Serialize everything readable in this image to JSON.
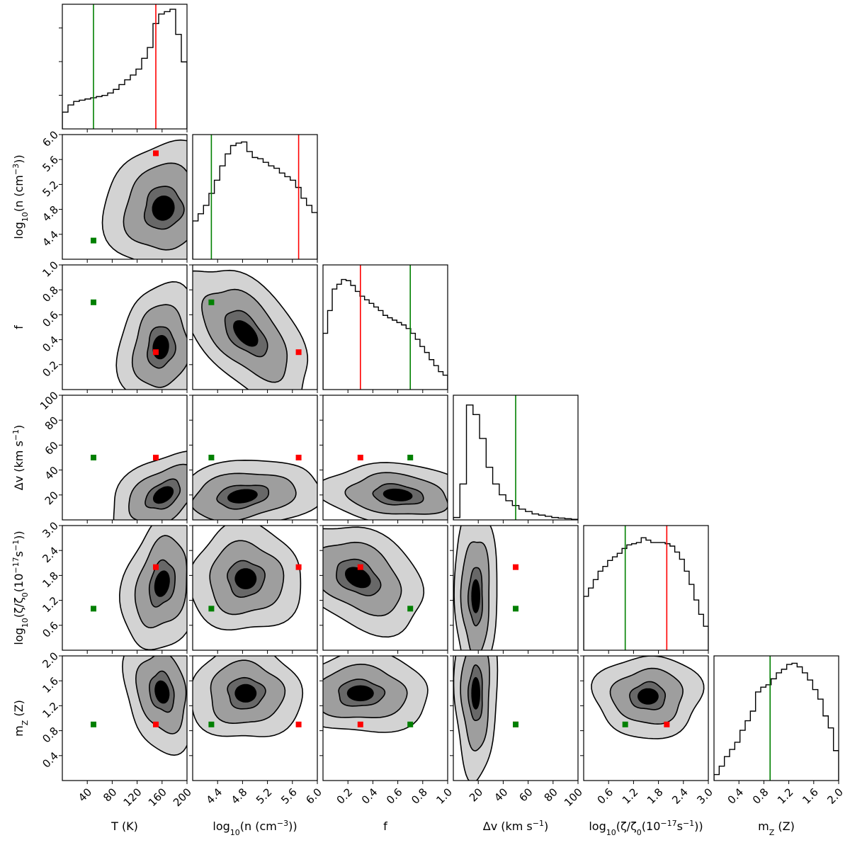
{
  "chart_data": {
    "type": "corner",
    "title": "",
    "parameters": [
      {
        "key": "T",
        "label_parts": [
          [
            "T (K)",
            ""
          ]
        ],
        "range": [
          0,
          200
        ],
        "ticks": [
          40,
          80,
          120,
          160,
          200
        ],
        "tick_labels": [
          "40",
          "80",
          "120",
          "160",
          "200"
        ]
      },
      {
        "key": "logn",
        "label_parts": [
          [
            "log",
            ""
          ],
          [
            "10",
            "sub"
          ],
          [
            "(n (cm",
            ""
          ],
          [
            "−3",
            "sup"
          ],
          [
            "))",
            ""
          ]
        ],
        "range": [
          4.0,
          6.0
        ],
        "ticks": [
          4.4,
          4.8,
          5.2,
          5.6,
          6.0
        ],
        "tick_labels": [
          "4.4",
          "4.8",
          "5.2",
          "5.6",
          "6.0"
        ]
      },
      {
        "key": "f",
        "label_parts": [
          [
            "f",
            ""
          ]
        ],
        "range": [
          0.0,
          1.0
        ],
        "ticks": [
          0.2,
          0.4,
          0.6,
          0.8,
          1.0
        ],
        "tick_labels": [
          "0.2",
          "0.4",
          "0.6",
          "0.8",
          "1.0"
        ]
      },
      {
        "key": "dv",
        "label_parts": [
          [
            "Δv (km s",
            ""
          ],
          [
            "−1",
            "sup"
          ],
          [
            ")",
            ""
          ]
        ],
        "range": [
          0,
          100
        ],
        "ticks": [
          20,
          40,
          60,
          80,
          100
        ],
        "tick_labels": [
          "20",
          "40",
          "60",
          "80",
          "100"
        ]
      },
      {
        "key": "logzeta",
        "label_parts": [
          [
            "log",
            ""
          ],
          [
            "10",
            "sub"
          ],
          [
            "(ζ/ζ",
            ""
          ],
          [
            "0",
            "sub"
          ],
          [
            "(10",
            ""
          ],
          [
            "−17",
            "sup"
          ],
          [
            "s",
            ""
          ],
          [
            "−1",
            "sup"
          ],
          [
            "))",
            ""
          ]
        ],
        "range": [
          0.0,
          3.0
        ],
        "ticks": [
          0.6,
          1.2,
          1.8,
          2.4,
          3.0
        ],
        "tick_labels": [
          "0.6",
          "1.2",
          "1.8",
          "2.4",
          "3.0"
        ]
      },
      {
        "key": "mz",
        "label_parts": [
          [
            "m",
            ""
          ],
          [
            "Z",
            "sub"
          ],
          [
            " (Z)",
            ""
          ]
        ],
        "range": [
          0.0,
          2.0
        ],
        "ticks": [
          0.4,
          0.8,
          1.2,
          1.6,
          2.0
        ],
        "tick_labels": [
          "0.4",
          "0.8",
          "1.2",
          "1.6",
          "2.0"
        ]
      }
    ],
    "truth_red": [
      150,
      5.7,
      0.3,
      50,
      2.0,
      0.9
    ],
    "truth_green": [
      50,
      4.3,
      0.7,
      50,
      1.0,
      0.9
    ],
    "red_line_params": [
      "T",
      "logn",
      "f",
      "logzeta"
    ],
    "green_line_params": [
      "T",
      "logn",
      "f",
      "dv",
      "logzeta",
      "mz"
    ],
    "histograms": {
      "T": [
        0.14,
        0.2,
        0.23,
        0.24,
        0.25,
        0.26,
        0.27,
        0.28,
        0.3,
        0.33,
        0.37,
        0.41,
        0.45,
        0.5,
        0.59,
        0.68,
        0.88,
        0.96,
        0.98,
        1.0,
        0.79,
        0.56
      ],
      "logn": [
        0.32,
        0.38,
        0.45,
        0.55,
        0.66,
        0.78,
        0.88,
        0.95,
        0.97,
        0.98,
        0.9,
        0.85,
        0.84,
        0.81,
        0.78,
        0.76,
        0.72,
        0.69,
        0.66,
        0.6,
        0.51,
        0.45,
        0.39
      ],
      "f": [
        0.47,
        0.66,
        0.84,
        0.88,
        0.92,
        0.91,
        0.87,
        0.82,
        0.78,
        0.75,
        0.72,
        0.69,
        0.66,
        0.62,
        0.6,
        0.58,
        0.56,
        0.54,
        0.51,
        0.47,
        0.42,
        0.36,
        0.31,
        0.25,
        0.2,
        0.15,
        0.12
      ],
      "dv": [
        0.02,
        0.3,
        0.96,
        0.88,
        0.68,
        0.44,
        0.3,
        0.21,
        0.16,
        0.12,
        0.09,
        0.07,
        0.05,
        0.04,
        0.03,
        0.02,
        0.015,
        0.01,
        0.005
      ],
      "logzeta": [
        0.45,
        0.52,
        0.59,
        0.66,
        0.7,
        0.75,
        0.78,
        0.81,
        0.85,
        0.88,
        0.89,
        0.9,
        0.94,
        0.92,
        0.9,
        0.9,
        0.9,
        0.89,
        0.87,
        0.82,
        0.76,
        0.66,
        0.55,
        0.42,
        0.3,
        0.2
      ],
      "mz": [
        0.05,
        0.12,
        0.2,
        0.26,
        0.32,
        0.42,
        0.5,
        0.58,
        0.74,
        0.78,
        0.8,
        0.85,
        0.9,
        0.93,
        0.97,
        0.98,
        0.95,
        0.9,
        0.84,
        0.76,
        0.68,
        0.54,
        0.44,
        0.25
      ]
    },
    "posterior_2d": [
      {
        "x": "T",
        "y": "logn",
        "mode": [
          162,
          4.82
        ],
        "sigma": [
          28,
          0.4
        ],
        "rho": 0.2,
        "ext": [
          1.2,
          1.6
        ]
      },
      {
        "x": "T",
        "y": "f",
        "mode": [
          158,
          0.34
        ],
        "sigma": [
          24,
          0.18
        ],
        "rho": 0.1,
        "ext": [
          1.3,
          1.3
        ]
      },
      {
        "x": "T",
        "y": "dv",
        "mode": [
          162,
          20
        ],
        "sigma": [
          26,
          12
        ],
        "rho": 0.2,
        "ext": [
          1.6,
          1.2
        ]
      },
      {
        "x": "T",
        "y": "logzeta",
        "mode": [
          160,
          1.6
        ],
        "sigma": [
          26,
          0.55
        ],
        "rho": 0.15,
        "ext": [
          1.4,
          1.1
        ]
      },
      {
        "x": "T",
        "y": "mz",
        "mode": [
          160,
          1.42
        ],
        "sigma": [
          25,
          0.32
        ],
        "rho": -0.1,
        "ext": [
          1.4,
          1.1
        ]
      },
      {
        "x": "logn",
        "y": "f",
        "mode": [
          4.85,
          0.45
        ],
        "sigma": [
          0.38,
          0.2
        ],
        "rho": -0.5,
        "ext": [
          1.3,
          1.2
        ]
      },
      {
        "x": "logn",
        "y": "dv",
        "mode": [
          4.8,
          19
        ],
        "sigma": [
          0.42,
          11
        ],
        "rho": 0.2,
        "ext": [
          1.4,
          1.2
        ]
      },
      {
        "x": "logn",
        "y": "logzeta",
        "mode": [
          4.85,
          1.72
        ],
        "sigma": [
          0.38,
          0.55
        ],
        "rho": 0.0,
        "ext": [
          1.1,
          1.1
        ]
      },
      {
        "x": "logn",
        "y": "mz",
        "mode": [
          4.85,
          1.4
        ],
        "sigma": [
          0.38,
          0.32
        ],
        "rho": 0.0,
        "ext": [
          1.1,
          1.1
        ]
      },
      {
        "x": "f",
        "y": "dv",
        "mode": [
          0.6,
          20
        ],
        "sigma": [
          0.22,
          9
        ],
        "rho": -0.2,
        "ext": [
          1.3,
          1.3
        ]
      },
      {
        "x": "f",
        "y": "logzeta",
        "mode": [
          0.28,
          1.75
        ],
        "sigma": [
          0.2,
          0.55
        ],
        "rho": -0.15,
        "ext": [
          1.3,
          1.0
        ]
      },
      {
        "x": "f",
        "y": "mz",
        "mode": [
          0.3,
          1.4
        ],
        "sigma": [
          0.2,
          0.3
        ],
        "rho": 0.0,
        "ext": [
          1.3,
          1.0
        ]
      },
      {
        "x": "dv",
        "y": "logzeta",
        "mode": [
          18,
          1.3
        ],
        "sigma": [
          8,
          0.55
        ],
        "rho": 0.0,
        "ext": [
          1.8,
          1.0
        ]
      },
      {
        "x": "dv",
        "y": "mz",
        "mode": [
          18,
          1.4
        ],
        "sigma": [
          8,
          0.35
        ],
        "rho": 0.0,
        "ext": [
          1.8,
          1.0
        ]
      },
      {
        "x": "logzeta",
        "y": "mz",
        "mode": [
          1.55,
          1.35
        ],
        "sigma": [
          0.55,
          0.28
        ],
        "rho": 0.0,
        "ext": [
          1.1,
          1.1
        ]
      }
    ],
    "contour_levels": [
      0.25,
      1.0,
      2.3
    ],
    "shade_colors": [
      "#d3d3d3",
      "#9e9e9e",
      "#686868",
      "#000000"
    ],
    "red_color": "#ff0000",
    "green_color": "#008000",
    "hist_color": "#000000"
  }
}
